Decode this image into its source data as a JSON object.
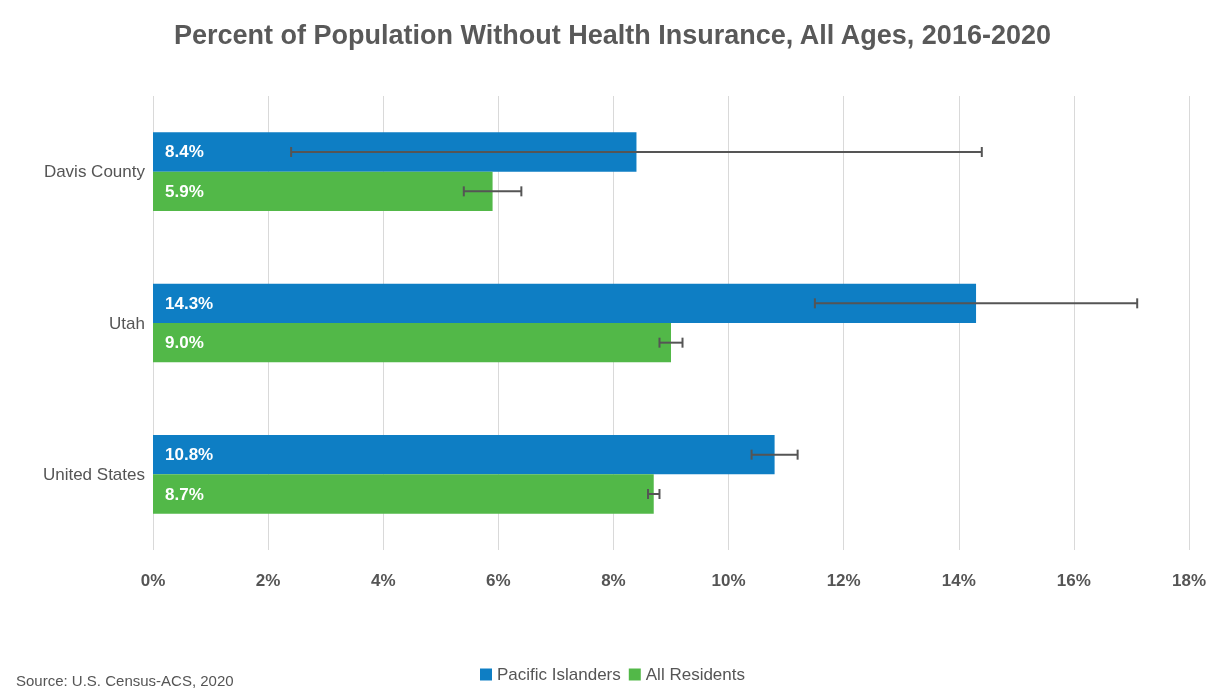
{
  "chart_data": {
    "type": "bar",
    "orientation": "horizontal",
    "title": "Percent of Population Without Health Insurance, All Ages, 2016-2020",
    "categories": [
      "Davis County",
      "Utah",
      "United States"
    ],
    "series": [
      {
        "name": "Pacific Islanders",
        "color": "#0e7ec4",
        "values": [
          8.4,
          14.3,
          10.8
        ],
        "errors": [
          [
            2.4,
            14.4
          ],
          [
            11.5,
            17.1
          ],
          [
            10.4,
            11.2
          ]
        ],
        "value_labels": [
          "8.4%",
          "14.3%",
          "10.8%"
        ]
      },
      {
        "name": "All Residents",
        "color": "#52b848",
        "values": [
          5.9,
          9.0,
          8.7
        ],
        "errors": [
          [
            5.4,
            6.4
          ],
          [
            8.8,
            9.2
          ],
          [
            8.6,
            8.8
          ]
        ],
        "value_labels": [
          "5.9%",
          "9.0%",
          "8.7%"
        ]
      }
    ],
    "xlim": [
      0,
      18
    ],
    "xticks": [
      {
        "value": 0,
        "label": "0%"
      },
      {
        "value": 2,
        "label": "2%"
      },
      {
        "value": 4,
        "label": "4%"
      },
      {
        "value": 6,
        "label": "6%"
      },
      {
        "value": 8,
        "label": "8%"
      },
      {
        "value": 10,
        "label": "10%"
      },
      {
        "value": 12,
        "label": "12%"
      },
      {
        "value": 14,
        "label": "14%"
      },
      {
        "value": 16,
        "label": "16%"
      },
      {
        "value": 18,
        "label": "18%"
      }
    ],
    "grid": "x",
    "legend": "bottom",
    "annotations": [
      "Source: U.S. Census-ACS, 2020"
    ]
  }
}
